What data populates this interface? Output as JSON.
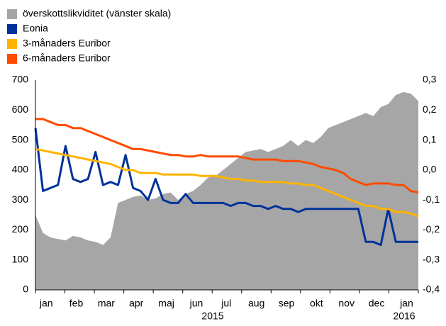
{
  "chart_data": {
    "type": "area-line",
    "categories": [
      null,
      null,
      "jan",
      null,
      null,
      null,
      "feb",
      null,
      null,
      null,
      "mar",
      null,
      null,
      null,
      "apr",
      null,
      null,
      null,
      "maj",
      null,
      null,
      null,
      "jun",
      null,
      null,
      null,
      "jul",
      null,
      null,
      null,
      "aug",
      null,
      null,
      null,
      "sep",
      null,
      null,
      null,
      "okt",
      null,
      null,
      null,
      "nov",
      null,
      null,
      null,
      "dec",
      null,
      null,
      null,
      "jan",
      null
    ],
    "x_group_labels": [
      "2015",
      "2016"
    ],
    "series": [
      {
        "name": "överskottslikviditet (vänster skala)",
        "color": "#a6a6a6",
        "type": "area",
        "axis": "y",
        "values": [
          250,
          190,
          175,
          170,
          165,
          180,
          175,
          165,
          160,
          150,
          175,
          290,
          300,
          310,
          315,
          300,
          305,
          320,
          325,
          300,
          320,
          330,
          350,
          375,
          380,
          400,
          420,
          440,
          460,
          465,
          470,
          460,
          470,
          480,
          500,
          480,
          500,
          490,
          510,
          540,
          550,
          560,
          570,
          580,
          590,
          580,
          610,
          620,
          650,
          660,
          655,
          630
        ]
      },
      {
        "name": "Eonia",
        "color": "#003299",
        "type": "line",
        "axis": "y2",
        "values": [
          0.14,
          -0.07,
          -0.06,
          -0.05,
          0.08,
          -0.03,
          -0.04,
          -0.03,
          0.06,
          -0.05,
          -0.04,
          -0.05,
          0.05,
          -0.06,
          -0.07,
          -0.1,
          -0.03,
          -0.1,
          -0.11,
          -0.11,
          -0.08,
          -0.11,
          -0.11,
          -0.11,
          -0.11,
          -0.11,
          -0.12,
          -0.11,
          -0.11,
          -0.12,
          -0.12,
          -0.13,
          -0.12,
          -0.13,
          -0.13,
          -0.14,
          -0.13,
          -0.13,
          -0.13,
          -0.13,
          -0.13,
          -0.13,
          -0.13,
          -0.13,
          -0.24,
          -0.24,
          -0.25,
          -0.13,
          -0.24,
          -0.24,
          -0.24,
          -0.24
        ]
      },
      {
        "name": "3-månaders Euribor",
        "color": "#ffb400",
        "type": "line",
        "axis": "y2",
        "values": [
          0.07,
          0.065,
          0.06,
          0.055,
          0.05,
          0.045,
          0.04,
          0.035,
          0.03,
          0.025,
          0.02,
          0.01,
          0.0,
          0.0,
          -0.01,
          -0.01,
          -0.01,
          -0.015,
          -0.015,
          -0.015,
          -0.015,
          -0.015,
          -0.02,
          -0.02,
          -0.02,
          -0.025,
          -0.03,
          -0.03,
          -0.035,
          -0.035,
          -0.04,
          -0.04,
          -0.04,
          -0.04,
          -0.045,
          -0.045,
          -0.05,
          -0.05,
          -0.06,
          -0.07,
          -0.08,
          -0.09,
          -0.1,
          -0.11,
          -0.12,
          -0.12,
          -0.13,
          -0.13,
          -0.14,
          -0.14,
          -0.145,
          -0.155
        ]
      },
      {
        "name": "6-månaders Euribor",
        "color": "#ff4b00",
        "type": "line",
        "axis": "y2",
        "values": [
          0.17,
          0.17,
          0.16,
          0.15,
          0.15,
          0.14,
          0.14,
          0.13,
          0.12,
          0.11,
          0.1,
          0.09,
          0.08,
          0.07,
          0.07,
          0.065,
          0.06,
          0.055,
          0.05,
          0.05,
          0.045,
          0.045,
          0.05,
          0.045,
          0.045,
          0.045,
          0.045,
          0.045,
          0.04,
          0.035,
          0.035,
          0.035,
          0.035,
          0.03,
          0.03,
          0.03,
          0.025,
          0.02,
          0.01,
          0.005,
          0.0,
          -0.01,
          -0.03,
          -0.04,
          -0.05,
          -0.045,
          -0.045,
          -0.045,
          -0.05,
          -0.05,
          -0.07,
          -0.075
        ]
      }
    ],
    "ylim": [
      0,
      700
    ],
    "yticks": [
      0,
      100,
      200,
      300,
      400,
      500,
      600,
      700
    ],
    "y2lim": [
      -0.4,
      0.3
    ],
    "y2ticks": [
      {
        "value": -0.4,
        "label": "-0,4"
      },
      {
        "value": -0.3,
        "label": "-0,3"
      },
      {
        "value": -0.2,
        "label": "-0,2"
      },
      {
        "value": -0.1,
        "label": "-0,1"
      },
      {
        "value": 0,
        "label": "0,0"
      },
      {
        "value": 0.1,
        "label": "0,1"
      },
      {
        "value": 0.2,
        "label": "0,2"
      },
      {
        "value": 0.3,
        "label": "0,3"
      }
    ],
    "legend": "top-left"
  }
}
